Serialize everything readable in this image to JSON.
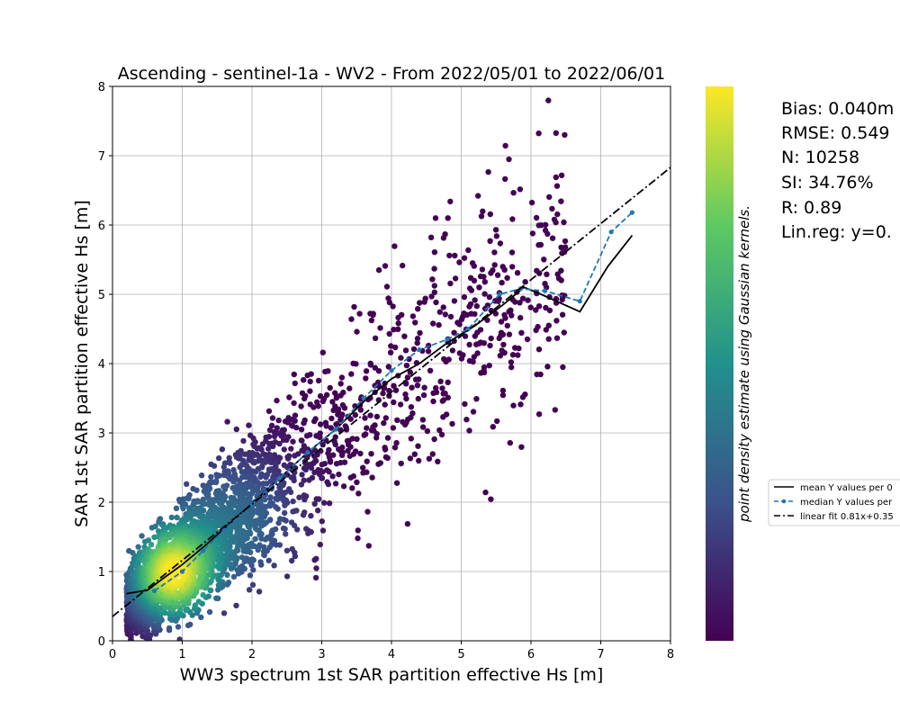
{
  "chart_data": {
    "type": "scatter",
    "title": "Ascending - sentinel-1a - WV2 - From 2022/05/01 to 2022/06/01",
    "xlabel": "WW3 spectrum 1st SAR partition effective Hs [m]",
    "ylabel": "SAR 1st SAR partition effective Hs [m]",
    "xlim": [
      0,
      8
    ],
    "ylim": [
      0,
      8
    ],
    "xticks": [
      "0",
      "1",
      "2",
      "3",
      "4",
      "5",
      "6",
      "7",
      "8"
    ],
    "yticks": [
      "0",
      "1",
      "2",
      "3",
      "4",
      "5",
      "6",
      "7",
      "8"
    ],
    "grid": true,
    "colorbar_label": "point density estimate using Gaussian kernels.",
    "colormap": [
      "#440154",
      "#3b528b",
      "#21918c",
      "#5ec962",
      "#fde725"
    ],
    "stats": [
      "Bias: 0.040m",
      "RMSE: 0.549",
      "N: 10258",
      "SI: 34.76%",
      "R: 0.89",
      "Lin.reg: y=0."
    ],
    "series": [
      {
        "name": "mean Y values per 0",
        "style": "solid",
        "color": "#000000",
        "x": [
          0.2,
          0.5,
          0.7,
          1.0,
          1.3,
          1.6,
          2.0,
          2.4,
          2.8,
          3.2,
          3.6,
          4.0,
          4.4,
          4.8,
          5.2,
          5.6,
          5.9,
          6.1,
          6.7,
          7.1,
          7.45
        ],
        "y": [
          0.68,
          0.73,
          0.88,
          1.1,
          1.35,
          1.62,
          1.98,
          2.35,
          2.72,
          3.05,
          3.45,
          3.78,
          4.0,
          4.3,
          4.55,
          4.85,
          5.1,
          5.02,
          4.75,
          5.4,
          5.85
        ]
      },
      {
        "name": "median Y values per",
        "style": "dashed-markers",
        "color": "#1f77b4",
        "x": [
          0.6,
          1.0,
          1.3,
          1.6,
          2.0,
          2.4,
          2.8,
          3.2,
          3.6,
          4.0,
          4.4,
          4.8,
          5.1,
          5.55,
          5.85,
          6.2,
          6.7,
          7.15,
          7.45
        ],
        "y": [
          0.72,
          1.0,
          1.3,
          1.6,
          1.97,
          2.35,
          2.72,
          3.05,
          3.5,
          3.9,
          4.2,
          4.35,
          4.5,
          5.0,
          5.08,
          5.05,
          4.9,
          5.9,
          6.18
        ]
      },
      {
        "name": "linear fit 0.81x+0.35",
        "style": "dashdot",
        "color": "#000000",
        "x": [
          0,
          8
        ],
        "y": [
          0.35,
          6.83
        ]
      }
    ]
  }
}
